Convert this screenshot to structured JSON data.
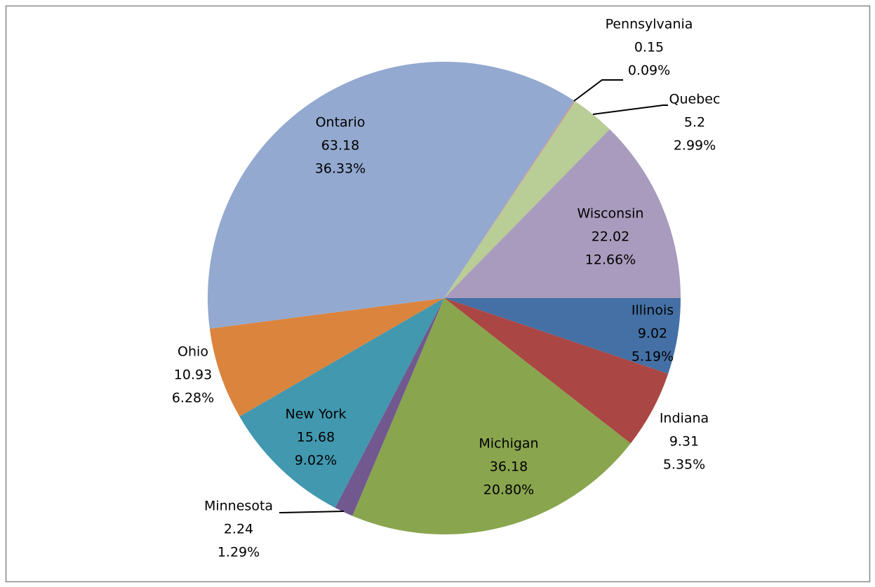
{
  "chart_data": {
    "type": "pie",
    "categories": [
      "Illinois",
      "Indiana",
      "Michigan",
      "Minnesota",
      "New York",
      "Ohio",
      "Ontario",
      "Pennsylvania",
      "Quebec",
      "Wisconsin"
    ],
    "values": [
      9.02,
      9.31,
      36.18,
      2.24,
      15.68,
      10.93,
      63.18,
      0.15,
      5.2,
      22.02
    ],
    "percent_labels": [
      "5.19%",
      "5.35%",
      "20.80%",
      "1.29%",
      "9.02%",
      "6.28%",
      "36.33%",
      "0.09%",
      "2.99%",
      "12.66%"
    ],
    "colors": [
      "#4470a5",
      "#aa4643",
      "#89a54e",
      "#71588f",
      "#4198af",
      "#db843d",
      "#93a9cf",
      "#d19392",
      "#b9cd96",
      "#a99bbd"
    ]
  }
}
